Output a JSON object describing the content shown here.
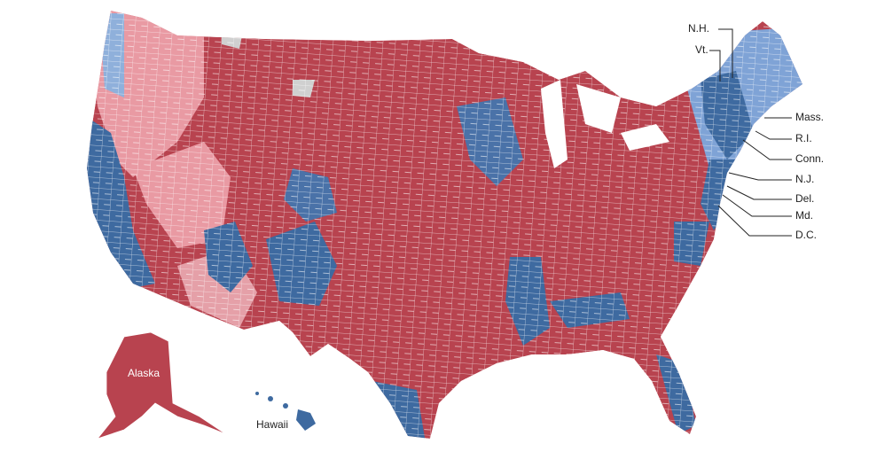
{
  "map": {
    "state_labels": [
      "N.H.",
      "Vt.",
      "Mass.",
      "R.I.",
      "Conn.",
      "N.J.",
      "Del.",
      "Md.",
      "D.C."
    ],
    "alaska": "Alaska",
    "hawaii": "Hawaii"
  }
}
